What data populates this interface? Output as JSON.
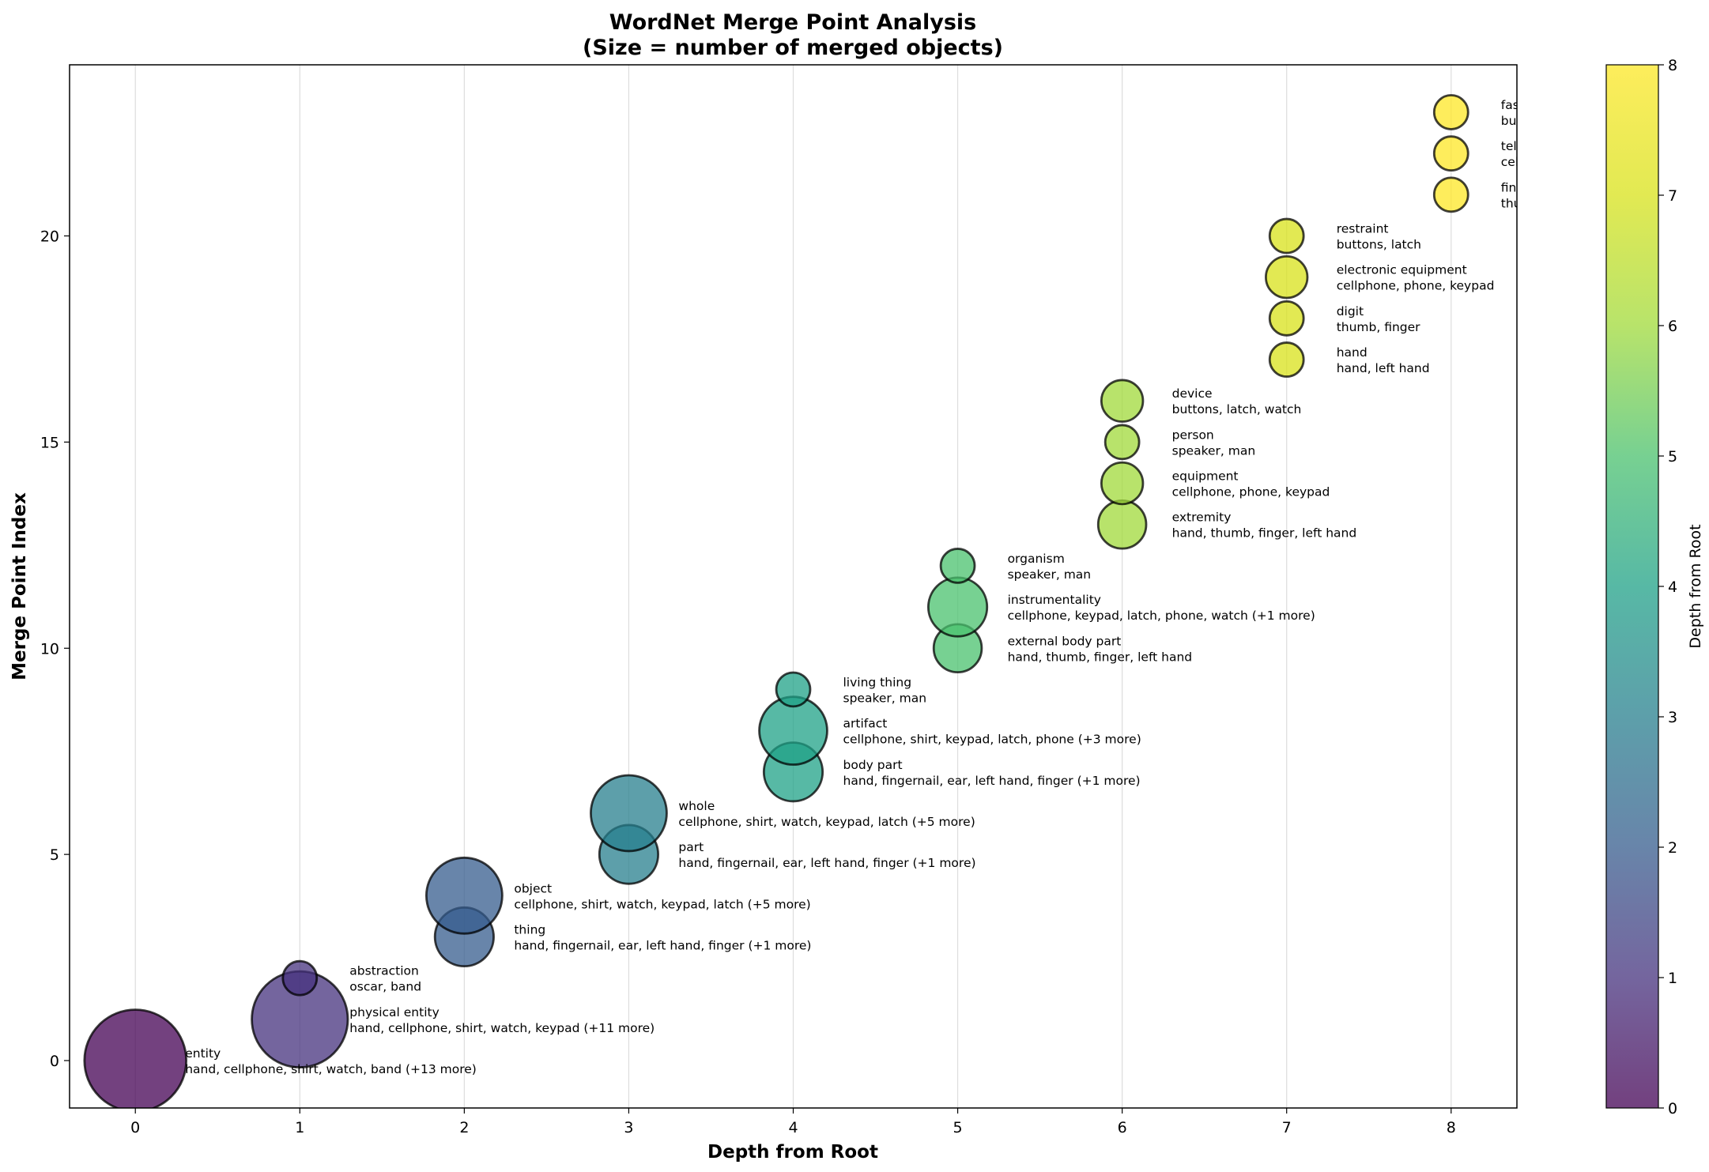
{
  "chart_data": {
    "type": "scatter",
    "title": "WordNet Merge Point Analysis",
    "subtitle": "(Size = number of merged objects)",
    "xlabel": "Depth from Root",
    "ylabel": "Merge Point Index",
    "xlim": [
      -0.4,
      8.4
    ],
    "ylim": [
      -1.15,
      24.15
    ],
    "xticks": [
      0,
      1,
      2,
      3,
      4,
      5,
      6,
      7,
      8
    ],
    "yticks": [
      0,
      5,
      10,
      15,
      20
    ],
    "grid": "vertical",
    "colormap": "viridis",
    "colorbar": {
      "label": "Depth from Root",
      "range": [
        0,
        8
      ],
      "ticks": [
        0,
        1,
        2,
        3,
        4,
        5,
        6,
        7,
        8
      ]
    },
    "points": [
      {
        "x": 0,
        "y": 0,
        "size": 18,
        "name": "entity",
        "objects": "hand, cellphone, shirt, watch, band (+13 more)"
      },
      {
        "x": 1,
        "y": 1,
        "size": 16,
        "name": "physical entity",
        "objects": "hand, cellphone, shirt, watch, keypad (+11 more)"
      },
      {
        "x": 1,
        "y": 2,
        "size": 2,
        "name": "abstraction",
        "objects": "oscar, band"
      },
      {
        "x": 2,
        "y": 3,
        "size": 6,
        "name": "thing",
        "objects": "hand, fingernail, ear, left hand, finger (+1 more)"
      },
      {
        "x": 2,
        "y": 4,
        "size": 10,
        "name": "object",
        "objects": "cellphone, shirt, watch, keypad, latch (+5 more)"
      },
      {
        "x": 3,
        "y": 5,
        "size": 6,
        "name": "part",
        "objects": "hand, fingernail, ear, left hand, finger (+1 more)"
      },
      {
        "x": 3,
        "y": 6,
        "size": 10,
        "name": "whole",
        "objects": "cellphone, shirt, watch, keypad, latch (+5 more)"
      },
      {
        "x": 4,
        "y": 7,
        "size": 6,
        "name": "body part",
        "objects": "hand, fingernail, ear, left hand, finger (+1 more)"
      },
      {
        "x": 4,
        "y": 8,
        "size": 8,
        "name": "artifact",
        "objects": "cellphone, shirt, keypad, latch, phone (+3 more)"
      },
      {
        "x": 4,
        "y": 9,
        "size": 2,
        "name": "living thing",
        "objects": "speaker, man"
      },
      {
        "x": 5,
        "y": 10,
        "size": 4,
        "name": "external body part",
        "objects": "hand, thumb, finger, left hand"
      },
      {
        "x": 5,
        "y": 11,
        "size": 6,
        "name": "instrumentality",
        "objects": "cellphone, keypad, latch, phone, watch (+1 more)"
      },
      {
        "x": 5,
        "y": 12,
        "size": 2,
        "name": "organism",
        "objects": "speaker, man"
      },
      {
        "x": 6,
        "y": 13,
        "size": 4,
        "name": "extremity",
        "objects": "hand, thumb, finger, left hand"
      },
      {
        "x": 6,
        "y": 14,
        "size": 3,
        "name": "equipment",
        "objects": "cellphone, phone, keypad"
      },
      {
        "x": 6,
        "y": 15,
        "size": 2,
        "name": "person",
        "objects": "speaker, man"
      },
      {
        "x": 6,
        "y": 16,
        "size": 3,
        "name": "device",
        "objects": "buttons, latch, watch"
      },
      {
        "x": 7,
        "y": 17,
        "size": 2,
        "name": "hand",
        "objects": "hand, left hand"
      },
      {
        "x": 7,
        "y": 18,
        "size": 2,
        "name": "digit",
        "objects": "thumb, finger"
      },
      {
        "x": 7,
        "y": 19,
        "size": 3,
        "name": "electronic equipment",
        "objects": "cellphone, phone, keypad"
      },
      {
        "x": 7,
        "y": 20,
        "size": 2,
        "name": "restraint",
        "objects": "buttons, latch"
      },
      {
        "x": 8,
        "y": 21,
        "size": 2,
        "name": "finger",
        "objects": "thumb, finger"
      },
      {
        "x": 8,
        "y": 22,
        "size": 2,
        "name": "telephone",
        "objects": "cellphone, phone"
      },
      {
        "x": 8,
        "y": 23,
        "size": 2,
        "name": "fastener",
        "objects": "buttons, latch"
      }
    ]
  }
}
